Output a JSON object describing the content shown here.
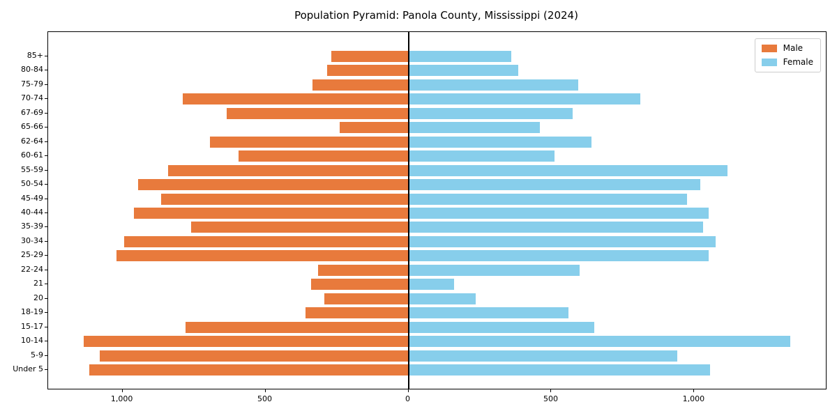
{
  "chart_data": {
    "type": "bar",
    "orientation": "horizontal",
    "title": "Population Pyramid: Panola County, Mississippi (2024)",
    "categories": [
      "85+",
      "80-84",
      "75-79",
      "70-74",
      "67-69",
      "65-66",
      "62-64",
      "60-61",
      "55-59",
      "50-54",
      "45-49",
      "40-44",
      "35-39",
      "30-34",
      "25-29",
      "22-24",
      "21",
      "20",
      "18-19",
      "15-17",
      "10-14",
      "5-9",
      "Under 5"
    ],
    "categories_order": "top-to-bottom",
    "series": [
      {
        "name": "Male",
        "direction": "left",
        "color": "#e87a3c",
        "values": [
          270,
          285,
          335,
          790,
          635,
          240,
          695,
          595,
          840,
          945,
          865,
          960,
          760,
          995,
          1020,
          315,
          340,
          295,
          360,
          780,
          1135,
          1080,
          1115
        ]
      },
      {
        "name": "Female",
        "direction": "right",
        "color": "#87ceeb",
        "values": [
          360,
          385,
          595,
          810,
          575,
          460,
          640,
          510,
          1115,
          1020,
          975,
          1050,
          1030,
          1075,
          1050,
          600,
          160,
          235,
          560,
          650,
          1335,
          940,
          1055
        ]
      }
    ],
    "x_axis": {
      "range": [
        -1260,
        1460
      ],
      "tick_values": [
        -1000,
        -500,
        0,
        500,
        1000
      ],
      "tick_labels": [
        "1,000",
        "500",
        "0",
        "500",
        "1,000"
      ]
    },
    "legend": {
      "position": "upper-right",
      "entries": [
        "Male",
        "Female"
      ]
    },
    "grid": false,
    "zero_line_color": "#000000"
  }
}
